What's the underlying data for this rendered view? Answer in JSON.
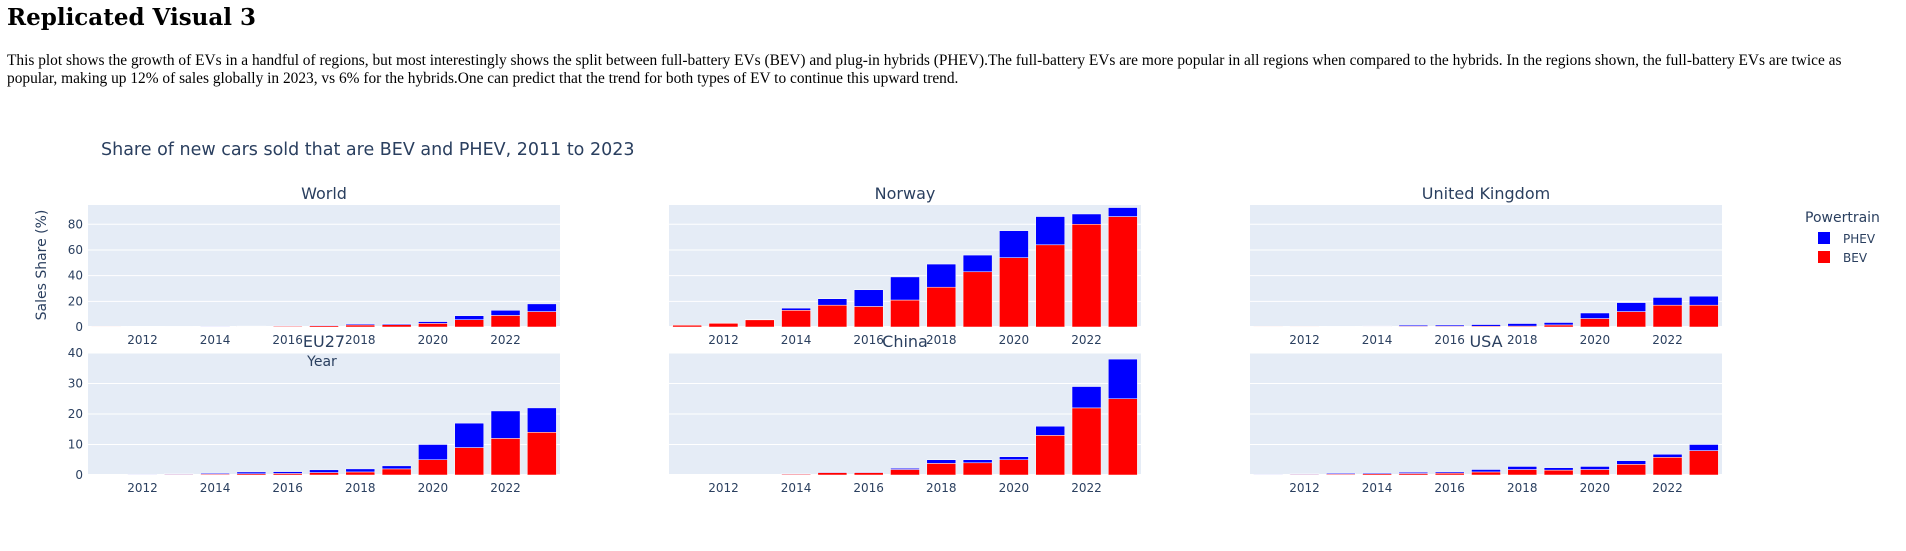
{
  "page": {
    "heading": "Replicated Visual 3",
    "description": "This plot shows the growth of EVs in a handful of regions, but most interestingly shows the split between full-battery EVs (BEV) and plug-in hybrids (PHEV).The full-battery EVs are more popular in all regions when compared to the hybrids. In the regions shown, the full-battery EVs are twice as popular, making up 12% of sales globally in 2023, vs 6% for the hybrids.One can predict that the trend for both types of EV to continue this upward trend."
  },
  "chart_data": {
    "type": "bar",
    "barmode": "stack",
    "title": "Share of new cars sold that are BEV and PHEV, 2011 to 2023",
    "xlabel": "Year",
    "ylabel": "Sales Share (%)",
    "x_ticks": [
      2012,
      2014,
      2016,
      2018,
      2020,
      2022
    ],
    "grid": true,
    "legend": {
      "title": "Powertrain",
      "placement": "right",
      "items": [
        {
          "name": "PHEV",
          "color": "#0000ff"
        },
        {
          "name": "BEV",
          "color": "#ff0000"
        }
      ]
    },
    "colors": {
      "BEV": "#ff0000",
      "PHEV": "#0000ff",
      "plot_bg": "#e5ecf6"
    },
    "years": [
      2011,
      2012,
      2013,
      2014,
      2015,
      2016,
      2017,
      2018,
      2019,
      2020,
      2021,
      2022,
      2023
    ],
    "rows": [
      {
        "ylim": [
          0,
          95
        ],
        "yticks": [
          0,
          20,
          40,
          60,
          80
        ]
      },
      {
        "ylim": [
          0,
          40
        ],
        "yticks": [
          0,
          10,
          20,
          30,
          40
        ]
      }
    ],
    "panels": [
      {
        "name": "World",
        "row": 0,
        "col": 0,
        "BEV": [
          0.1,
          0.1,
          0.2,
          0.3,
          0.4,
          0.6,
          1.0,
          1.6,
          1.8,
          2.8,
          5.7,
          9.0,
          12.0
        ],
        "PHEV": [
          0.0,
          0.1,
          0.1,
          0.2,
          0.3,
          0.3,
          0.5,
          0.8,
          0.7,
          1.4,
          3.1,
          4.0,
          6.0
        ]
      },
      {
        "name": "Norway",
        "row": 0,
        "col": 1,
        "BEV": [
          1.4,
          2.9,
          5.6,
          13.0,
          17.0,
          16.0,
          21.0,
          31.0,
          43.0,
          54.0,
          64.0,
          80.0,
          86.0
        ],
        "PHEV": [
          0.0,
          0.1,
          0.2,
          1.7,
          5.0,
          13.0,
          18.0,
          18.0,
          13.0,
          21.0,
          22.0,
          8.0,
          7.0
        ]
      },
      {
        "name": "United Kingdom",
        "row": 0,
        "col": 2,
        "BEV": [
          0.1,
          0.1,
          0.2,
          0.4,
          0.5,
          0.5,
          0.6,
          0.7,
          1.6,
          6.6,
          12.0,
          17.0,
          17.0
        ],
        "PHEV": [
          0.0,
          0.0,
          0.1,
          0.4,
          0.9,
          1.0,
          1.3,
          2.0,
          1.9,
          4.3,
          7.0,
          6.0,
          7.0
        ]
      },
      {
        "name": "EU27",
        "row": 1,
        "col": 0,
        "BEV": [
          0.0,
          0.1,
          0.2,
          0.3,
          0.4,
          0.5,
          0.8,
          1.0,
          2.0,
          5.0,
          9.0,
          12.0,
          14.0
        ],
        "PHEV": [
          0.0,
          0.1,
          0.2,
          0.3,
          0.6,
          0.6,
          0.9,
          1.0,
          1.0,
          5.0,
          8.0,
          9.0,
          8.0
        ]
      },
      {
        "name": "China",
        "row": 1,
        "col": 1,
        "BEV": [
          0.0,
          0.0,
          0.1,
          0.3,
          0.8,
          0.8,
          1.8,
          3.8,
          4.0,
          5.0,
          13.0,
          22.0,
          25.0
        ],
        "PHEV": [
          0.0,
          0.0,
          0.0,
          0.1,
          0.2,
          0.2,
          0.4,
          1.2,
          1.0,
          1.0,
          3.0,
          7.0,
          13.0
        ]
      },
      {
        "name": "USA",
        "row": 1,
        "col": 2,
        "BEV": [
          0.1,
          0.2,
          0.3,
          0.4,
          0.5,
          0.6,
          1.0,
          1.8,
          1.6,
          1.8,
          3.5,
          5.8,
          8.0
        ],
        "PHEV": [
          0.1,
          0.2,
          0.3,
          0.3,
          0.4,
          0.4,
          0.8,
          1.0,
          0.8,
          1.0,
          1.2,
          1.0,
          2.0
        ]
      }
    ]
  }
}
